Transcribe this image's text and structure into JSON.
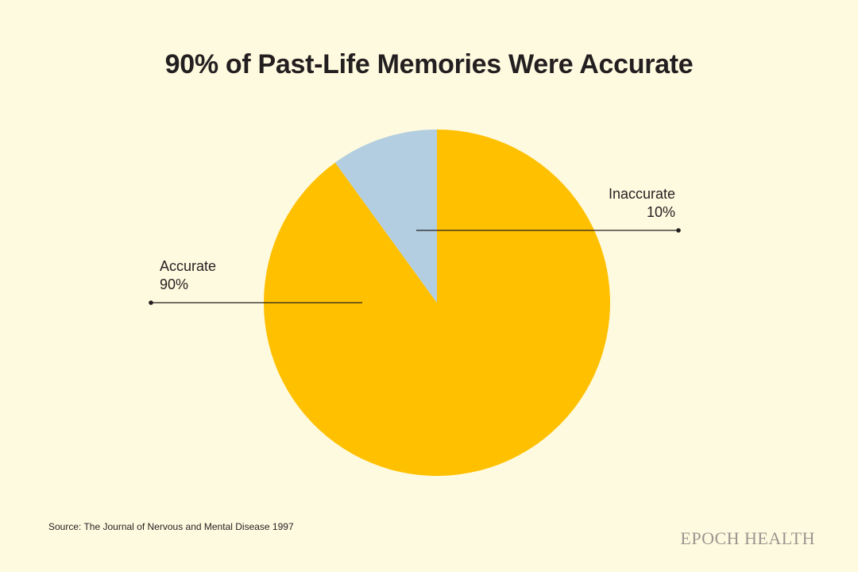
{
  "chart_data": {
    "type": "pie",
    "title": "90% of Past-Life Memories Were Accurate",
    "slices": [
      {
        "label": "Accurate",
        "value": 90,
        "value_label": "90%",
        "color": "#ffc000"
      },
      {
        "label": "Inaccurate",
        "value": 10,
        "value_label": "10%",
        "color": "#b3cee0"
      }
    ]
  },
  "source": "Source: The Journal of Nervous and Mental Disease 1997",
  "brand": "EPOCH HEALTH",
  "colors": {
    "background": "#fefadf",
    "text": "#231f20",
    "accurate": "#ffc000",
    "inaccurate": "#b3cee0"
  }
}
